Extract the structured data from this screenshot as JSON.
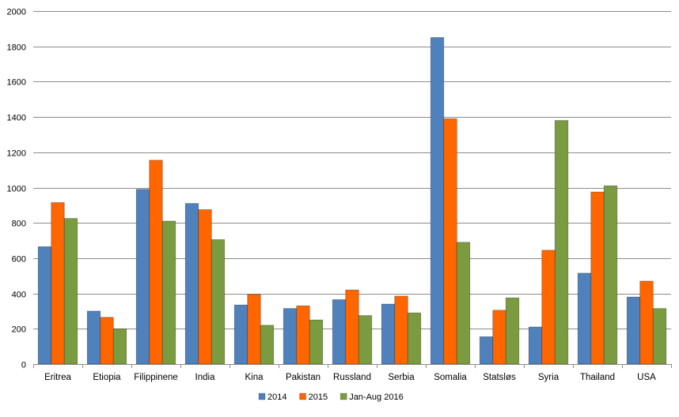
{
  "chart_data": {
    "type": "bar",
    "categories": [
      "Eritrea",
      "Etiopia",
      "Filippinene",
      "India",
      "Kina",
      "Pakistan",
      "Russland",
      "Serbia",
      "Somalia",
      "Statsløs",
      "Syria",
      "Thailand",
      "USA"
    ],
    "series": [
      {
        "name": "2014",
        "color": "#4F81BD",
        "values": [
          665,
          300,
          990,
          910,
          335,
          315,
          365,
          340,
          1850,
          155,
          210,
          515,
          380
        ]
      },
      {
        "name": "2015",
        "color": "#FF6600",
        "values": [
          915,
          265,
          1155,
          875,
          395,
          330,
          420,
          385,
          1390,
          305,
          645,
          975,
          470
        ]
      },
      {
        "name": "Jan-Aug 2016",
        "color": "#7A9B40",
        "values": [
          825,
          200,
          810,
          705,
          220,
          250,
          275,
          290,
          690,
          375,
          1380,
          1010,
          315
        ]
      }
    ],
    "y_ticks": [
      "0",
      "200",
      "400",
      "600",
      "800",
      "1000",
      "1200",
      "1400",
      "1600",
      "1800",
      "2000"
    ],
    "ylim": [
      0,
      2000
    ],
    "grid": true,
    "legend_position": "bottom-center"
  }
}
